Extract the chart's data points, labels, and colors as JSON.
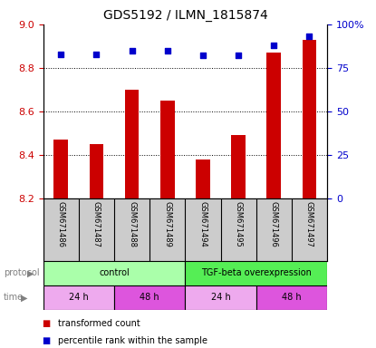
{
  "title": "GDS5192 / ILMN_1815874",
  "samples": [
    "GSM671486",
    "GSM671487",
    "GSM671488",
    "GSM671489",
    "GSM671494",
    "GSM671495",
    "GSM671496",
    "GSM671497"
  ],
  "bar_values": [
    8.47,
    8.45,
    8.7,
    8.65,
    8.38,
    8.49,
    8.87,
    8.93
  ],
  "percentile_values": [
    83,
    83,
    85,
    85,
    82,
    82,
    88,
    93
  ],
  "ylim_left": [
    8.2,
    9.0
  ],
  "ylim_right": [
    0,
    100
  ],
  "yticks_left": [
    8.2,
    8.4,
    8.6,
    8.8,
    9.0
  ],
  "yticks_right": [
    0,
    25,
    50,
    75,
    100
  ],
  "ytick_labels_right": [
    "0",
    "25",
    "50",
    "75",
    "100%"
  ],
  "bar_color": "#cc0000",
  "dot_color": "#0000cc",
  "grid_lines": [
    8.4,
    8.6,
    8.8
  ],
  "protocol_groups": [
    {
      "label": "control",
      "start": 0,
      "end": 4,
      "color": "#aaffaa"
    },
    {
      "label": "TGF-beta overexpression",
      "start": 4,
      "end": 8,
      "color": "#55ee55"
    }
  ],
  "time_groups": [
    {
      "label": "24 h",
      "start": 0,
      "end": 2,
      "color": "#eeaaee"
    },
    {
      "label": "48 h",
      "start": 2,
      "end": 4,
      "color": "#dd55dd"
    },
    {
      "label": "24 h",
      "start": 4,
      "end": 6,
      "color": "#eeaaee"
    },
    {
      "label": "48 h",
      "start": 6,
      "end": 8,
      "color": "#dd55dd"
    }
  ],
  "sample_bg_color": "#cccccc",
  "legend_items": [
    {
      "label": "transformed count",
      "color": "#cc0000"
    },
    {
      "label": "percentile rank within the sample",
      "color": "#0000cc"
    }
  ],
  "left_label_color": "gray",
  "title_fontsize": 10,
  "bar_width": 0.4
}
